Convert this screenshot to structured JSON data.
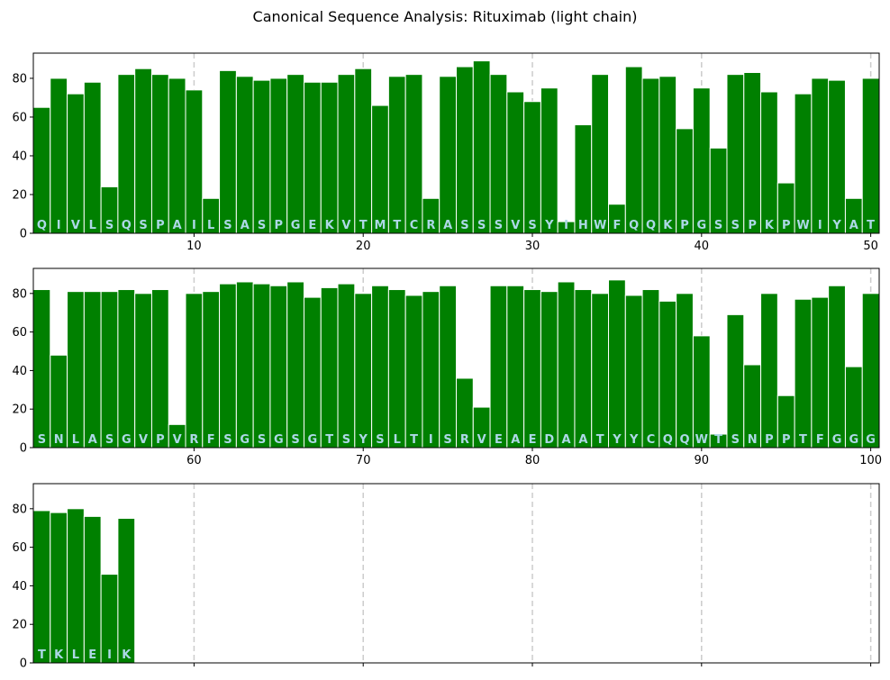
{
  "chart_data": {
    "type": "bar",
    "title": "Canonical Sequence Analysis: Rituximab (light chain)",
    "xlabel": "",
    "ylabel": "",
    "ylim": [
      0,
      93
    ],
    "yticks": [
      0,
      20,
      40,
      60,
      80
    ],
    "grid": "vertical dashed lines every 10 positions",
    "bar_color": "#008000",
    "label_color": "#add8e6",
    "panels": [
      {
        "xlim": [
          0.5,
          50.5
        ],
        "xticks": [
          10,
          20,
          30,
          40,
          50
        ],
        "show_xtick_labels": true
      },
      {
        "xlim": [
          50.5,
          100.5
        ],
        "xticks": [
          60,
          70,
          80,
          90,
          100
        ],
        "show_xtick_labels": true
      },
      {
        "xlim": [
          100.5,
          150.5
        ],
        "xticks": [
          110,
          120,
          130,
          140,
          150
        ],
        "show_xtick_labels": false
      }
    ],
    "sequence": [
      "Q",
      "I",
      "V",
      "L",
      "S",
      "Q",
      "S",
      "P",
      "A",
      "I",
      "L",
      "S",
      "A",
      "S",
      "P",
      "G",
      "E",
      "K",
      "V",
      "T",
      "M",
      "T",
      "C",
      "R",
      "A",
      "S",
      "S",
      "S",
      "V",
      "S",
      "Y",
      "I",
      "H",
      "W",
      "F",
      "Q",
      "Q",
      "K",
      "P",
      "G",
      "S",
      "S",
      "P",
      "K",
      "P",
      "W",
      "I",
      "Y",
      "A",
      "T",
      "S",
      "N",
      "L",
      "A",
      "S",
      "G",
      "V",
      "P",
      "V",
      "R",
      "F",
      "S",
      "G",
      "S",
      "G",
      "S",
      "G",
      "T",
      "S",
      "Y",
      "S",
      "L",
      "T",
      "I",
      "S",
      "R",
      "V",
      "E",
      "A",
      "E",
      "D",
      "A",
      "A",
      "T",
      "Y",
      "Y",
      "C",
      "Q",
      "Q",
      "W",
      "T",
      "S",
      "N",
      "P",
      "P",
      "T",
      "F",
      "G",
      "G",
      "G",
      "T",
      "K",
      "L",
      "E",
      "I",
      "K"
    ],
    "values": [
      65,
      80,
      72,
      78,
      24,
      82,
      85,
      82,
      80,
      74,
      18,
      84,
      81,
      79,
      80,
      82,
      78,
      78,
      82,
      85,
      66,
      81,
      82,
      18,
      81,
      86,
      89,
      82,
      73,
      68,
      75,
      6,
      56,
      82,
      15,
      86,
      80,
      81,
      54,
      75,
      44,
      82,
      83,
      73,
      26,
      72,
      80,
      79,
      18,
      80,
      82,
      48,
      81,
      81,
      81,
      82,
      80,
      82,
      12,
      80,
      81,
      85,
      86,
      85,
      84,
      86,
      78,
      83,
      85,
      80,
      84,
      82,
      79,
      81,
      84,
      36,
      21,
      84,
      84,
      82,
      81,
      86,
      82,
      80,
      87,
      79,
      82,
      76,
      80,
      58,
      7,
      69,
      43,
      80,
      27,
      77,
      78,
      84,
      42,
      80,
      79,
      78,
      80,
      76,
      46,
      75
    ]
  }
}
